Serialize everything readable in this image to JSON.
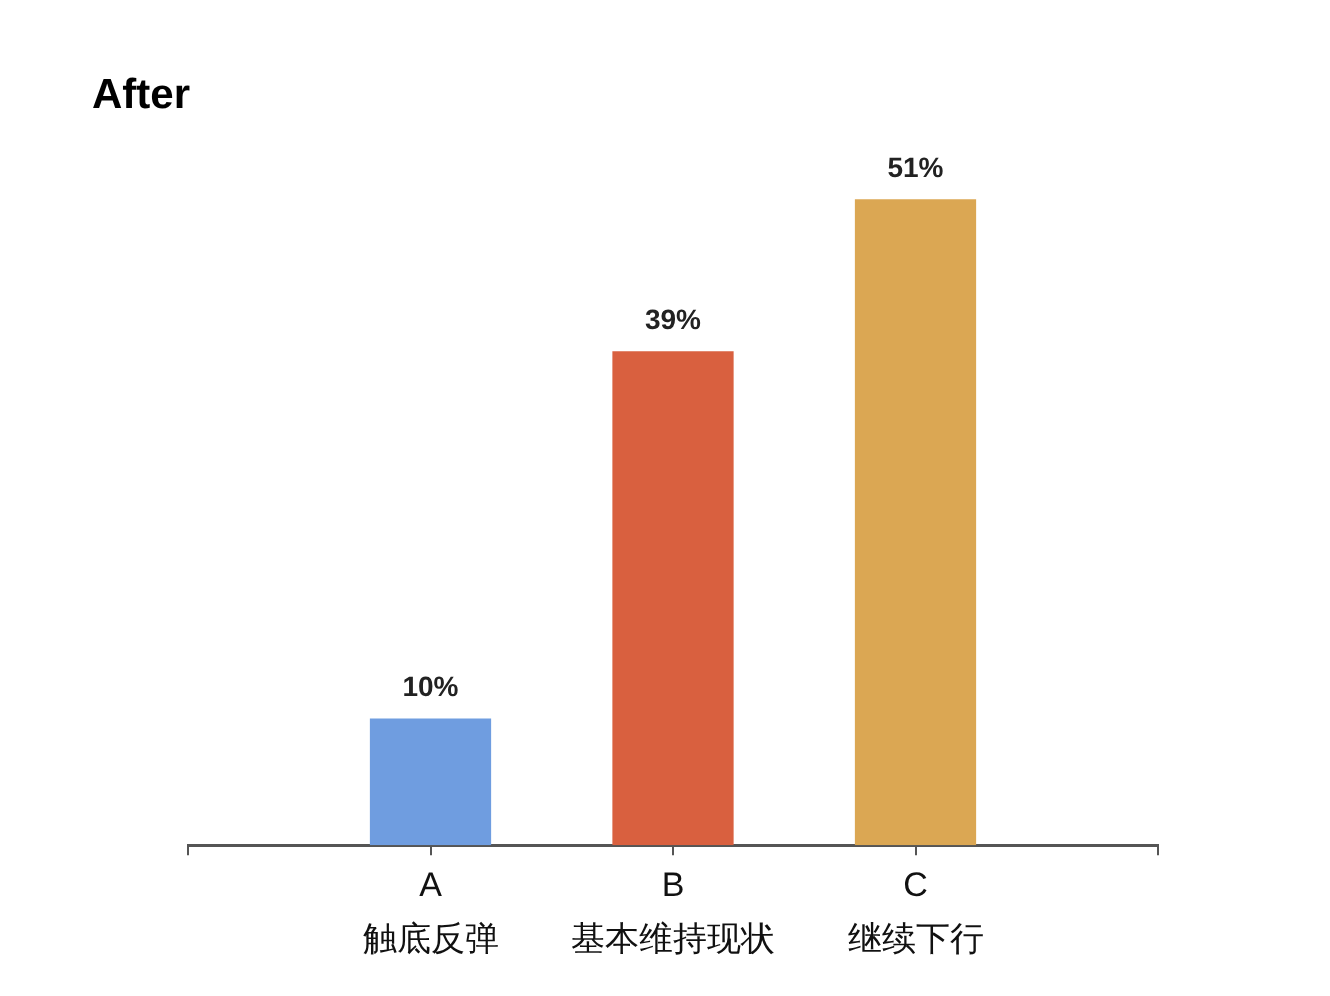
{
  "chart_data": {
    "type": "bar",
    "title": "After",
    "categories": [
      "A\n触底反弹",
      "B\n基本维持现状",
      "C\n继续下行"
    ],
    "values": [
      10,
      39,
      51
    ],
    "colors": [
      "#6f9de0",
      "#d9603f",
      "#dba753"
    ],
    "value_labels": [
      "10%",
      "39%",
      "51%"
    ]
  }
}
